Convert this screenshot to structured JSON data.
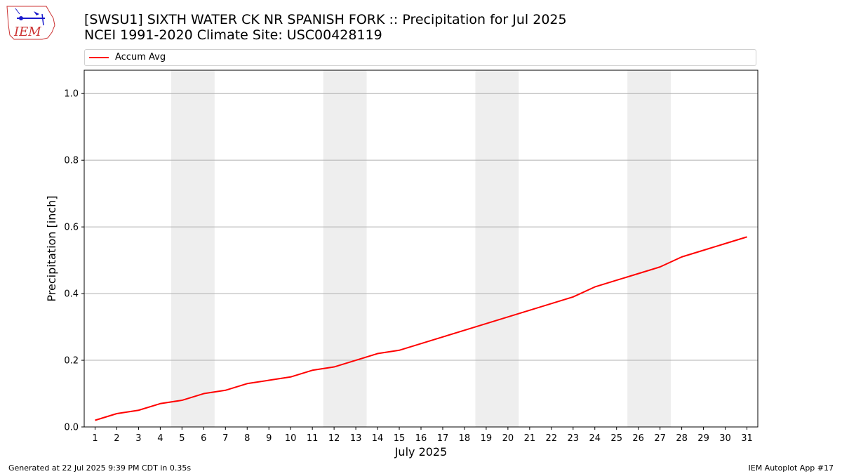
{
  "header": {
    "title_line1": "[SWSU1] SIXTH WATER CK NR SPANISH FORK :: Precipitation for Jul 2025",
    "title_line2": "NCEI 1991-2020 Climate Site: USC00428119"
  },
  "logo": {
    "text": "IEM",
    "icon": "iem-iowa-logo-icon"
  },
  "footer": {
    "generated": "Generated at 22 Jul 2025 9:39 PM CDT in 0.35s",
    "app": "IEM Autoplot App #17"
  },
  "chart_data": {
    "type": "line",
    "xlabel": "July 2025",
    "ylabel": "Precipitation [inch]",
    "x": [
      1,
      2,
      3,
      4,
      5,
      6,
      7,
      8,
      9,
      10,
      11,
      12,
      13,
      14,
      15,
      16,
      17,
      18,
      19,
      20,
      21,
      22,
      23,
      24,
      25,
      26,
      27,
      28,
      29,
      30,
      31
    ],
    "xlim": [
      0.5,
      31.5
    ],
    "ylim": [
      0,
      1.07
    ],
    "yticks": [
      0.0,
      0.2,
      0.4,
      0.6,
      0.8,
      1.0
    ],
    "ytick_labels": [
      "0.0",
      "0.2",
      "0.4",
      "0.6",
      "0.8",
      "1.0"
    ],
    "grid": "horizontal",
    "legend": "top",
    "weekend_shading": [
      [
        5,
        6
      ],
      [
        12,
        13
      ],
      [
        19,
        20
      ],
      [
        26,
        27
      ]
    ],
    "shading_color": "#eeeeee",
    "series": [
      {
        "name": "Accum Avg",
        "color": "#ff0000",
        "values": [
          0.02,
          0.04,
          0.05,
          0.07,
          0.08,
          0.1,
          0.11,
          0.13,
          0.14,
          0.15,
          0.17,
          0.18,
          0.2,
          0.22,
          0.23,
          0.25,
          0.27,
          0.29,
          0.31,
          0.33,
          0.35,
          0.37,
          0.39,
          0.42,
          0.44,
          0.46,
          0.48,
          0.51,
          0.53,
          0.55,
          0.57
        ]
      }
    ]
  }
}
